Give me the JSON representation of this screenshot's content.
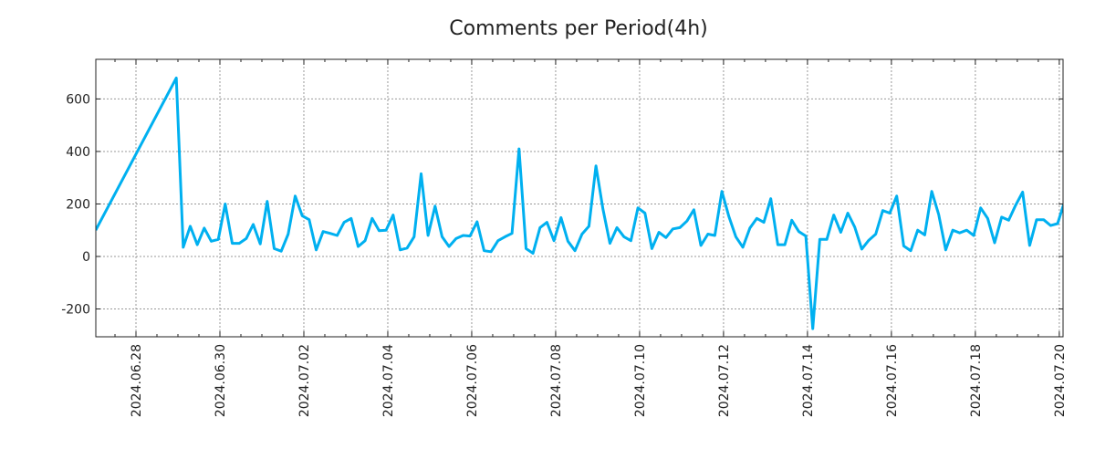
{
  "chart_data": {
    "type": "line",
    "title": "Comments per Period(4h)",
    "xlabel": "",
    "ylabel": "",
    "x_unit": "days since 2024.06.28 00:00",
    "xlim": [
      -0.957,
      22.09
    ],
    "ylim": [
      -306,
      751
    ],
    "grid": true,
    "line_color": "#00b0f0",
    "y_ticks": [
      -200,
      0,
      200,
      400,
      600
    ],
    "y_tick_labels": [
      "-200",
      "0",
      "200",
      "400",
      "600"
    ],
    "x_ticks": [
      0,
      2,
      4,
      6,
      8,
      10,
      12,
      14,
      16,
      18,
      20,
      22
    ],
    "x_tick_labels": [
      "2024.06.28",
      "2024.06.30",
      "2024.07.02",
      "2024.07.04",
      "2024.07.06",
      "2024.07.08",
      "2024.07.10",
      "2024.07.12",
      "2024.07.14",
      "2024.07.16",
      "2024.07.18",
      "2024.07.20"
    ],
    "first_point": {
      "x": -0.96,
      "y": 100
    },
    "series_start_x": 0.96,
    "series_interval_days": 0.16667,
    "values": [
      680,
      35,
      115,
      45,
      108,
      58,
      65,
      200,
      50,
      50,
      68,
      122,
      48,
      210,
      30,
      20,
      85,
      230,
      155,
      140,
      25,
      95,
      88,
      80,
      130,
      145,
      38,
      60,
      145,
      98,
      100,
      158,
      25,
      32,
      75,
      315,
      80,
      192,
      75,
      38,
      68,
      80,
      78,
      132,
      22,
      18,
      60,
      75,
      88,
      410,
      30,
      12,
      110,
      130,
      60,
      148,
      58,
      22,
      85,
      115,
      345,
      180,
      50,
      110,
      75,
      60,
      185,
      165,
      30,
      92,
      72,
      105,
      110,
      135,
      178,
      42,
      85,
      80,
      248,
      152,
      75,
      35,
      108,
      145,
      130,
      220,
      45,
      45,
      138,
      95,
      78,
      -275,
      65,
      65,
      158,
      92,
      165,
      112,
      28,
      62,
      85,
      175,
      165,
      230,
      40,
      22,
      100,
      82,
      248,
      160,
      25,
      100,
      90,
      100,
      80,
      185,
      145,
      52,
      150,
      138,
      195,
      245,
      42,
      140,
      140,
      118,
      125,
      210
    ]
  }
}
